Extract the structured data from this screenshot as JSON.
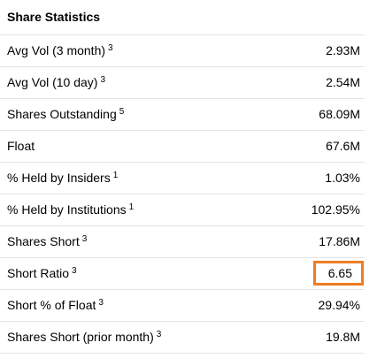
{
  "panel": {
    "title": "Share Statistics",
    "highlight_color": "#ef7d22",
    "rows": [
      {
        "label": "Avg Vol (3 month)",
        "footnote": "3",
        "value": "2.93M"
      },
      {
        "label": "Avg Vol (10 day)",
        "footnote": "3",
        "value": "2.54M"
      },
      {
        "label": "Shares Outstanding",
        "footnote": "5",
        "value": "68.09M"
      },
      {
        "label": "Float",
        "footnote": "",
        "value": "67.6M"
      },
      {
        "label": "% Held by Insiders",
        "footnote": "1",
        "value": "1.03%"
      },
      {
        "label": "% Held by Institutions",
        "footnote": "1",
        "value": "102.95%"
      },
      {
        "label": "Shares Short",
        "footnote": "3",
        "value": "17.86M"
      },
      {
        "label": "Short Ratio",
        "footnote": "3",
        "value": "6.65",
        "highlighted": true
      },
      {
        "label": "Short % of Float",
        "footnote": "3",
        "value": "29.94%"
      },
      {
        "label": "Shares Short (prior month)",
        "footnote": "3",
        "value": "19.8M"
      }
    ]
  }
}
